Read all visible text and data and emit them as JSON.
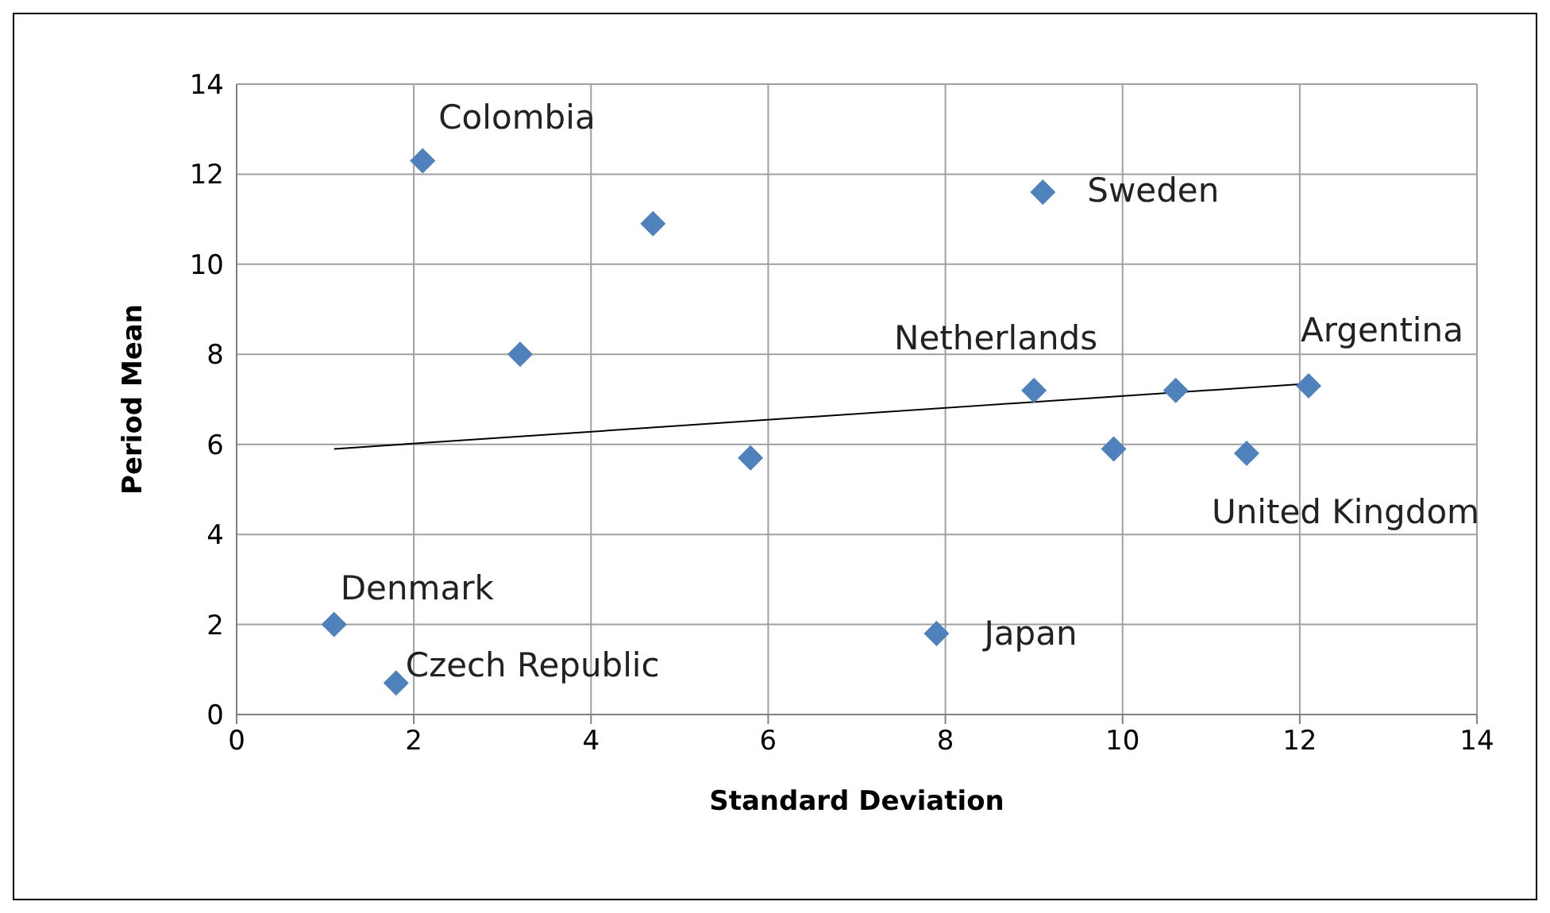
{
  "chart_data": {
    "type": "scatter",
    "xlabel": "Standard Deviation",
    "ylabel": "Period Mean",
    "xlim": [
      0,
      14
    ],
    "xticks": [
      0,
      2,
      4,
      6,
      8,
      10,
      12,
      14
    ],
    "ylim": [
      0,
      14
    ],
    "yticks": [
      0,
      2,
      4,
      6,
      8,
      10,
      12,
      14
    ],
    "grid": true,
    "marker": "diamond",
    "series": [
      {
        "color": "#4f81bd",
        "x": [
          2.1,
          4.7,
          3.2,
          5.8,
          9.1,
          9.0,
          9.9,
          10.6,
          11.4,
          12.1,
          1.1,
          1.8,
          7.9
        ],
        "values": [
          12.3,
          10.9,
          8.0,
          5.7,
          11.6,
          7.2,
          5.9,
          7.2,
          5.8,
          7.3,
          2.0,
          0.7,
          1.8
        ]
      },
      {
        "type": "line",
        "marker": "none",
        "color": "#000000",
        "x": [
          1.1,
          12.1
        ],
        "values": [
          5.9,
          7.35
        ]
      }
    ],
    "annotations": [
      {
        "text": "Colombia",
        "x": 2.1,
        "y": 12.3
      },
      {
        "text": "Sweden",
        "x": 9.1,
        "y": 11.6
      },
      {
        "text": "Netherlands",
        "x": 9.0,
        "y": 7.2
      },
      {
        "text": "Argentina",
        "x": 12.1,
        "y": 7.3
      },
      {
        "text": "United Kingdom",
        "x": 11.4,
        "y": 5.8
      },
      {
        "text": "Denmark",
        "x": 1.1,
        "y": 2.0
      },
      {
        "text": "Czech Republic",
        "x": 1.8,
        "y": 0.7
      },
      {
        "text": "Japan",
        "x": 7.9,
        "y": 1.8
      }
    ]
  }
}
